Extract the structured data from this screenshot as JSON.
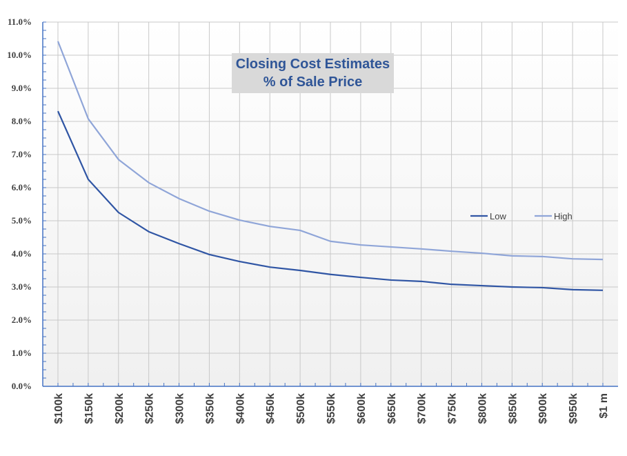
{
  "chart_data": {
    "type": "line",
    "title": [
      "Closing Cost Estimates",
      "% of Sale Price"
    ],
    "xlabel": "",
    "ylabel": "",
    "categories": [
      "$100k",
      "$150k",
      "$200k",
      "$250k",
      "$300k",
      "$350k",
      "$400k",
      "$450k",
      "$500k",
      "$550k",
      "$600k",
      "$650k",
      "$700k",
      "$750k",
      "$800k",
      "$850k",
      "$900k",
      "$950k",
      "$1 m"
    ],
    "ylim": [
      0,
      11
    ],
    "yticks": [
      "0.0%",
      "1.0%",
      "2.0%",
      "3.0%",
      "4.0%",
      "5.0%",
      "6.0%",
      "7.0%",
      "8.0%",
      "9.0%",
      "10.0%",
      "11.0%"
    ],
    "grid": true,
    "legend": "right-middle",
    "series": [
      {
        "name": "Low",
        "color": "#2f55a4",
        "values": [
          8.31,
          6.25,
          5.25,
          4.67,
          4.31,
          3.98,
          3.77,
          3.6,
          3.5,
          3.38,
          3.29,
          3.21,
          3.17,
          3.08,
          3.04,
          3.0,
          2.98,
          2.92,
          2.9
        ]
      },
      {
        "name": "High",
        "color": "#8fa5d8",
        "values": [
          10.42,
          8.08,
          6.85,
          6.15,
          5.67,
          5.29,
          5.02,
          4.83,
          4.71,
          4.38,
          4.27,
          4.21,
          4.15,
          4.08,
          4.02,
          3.94,
          3.92,
          3.85,
          3.83
        ]
      }
    ]
  }
}
